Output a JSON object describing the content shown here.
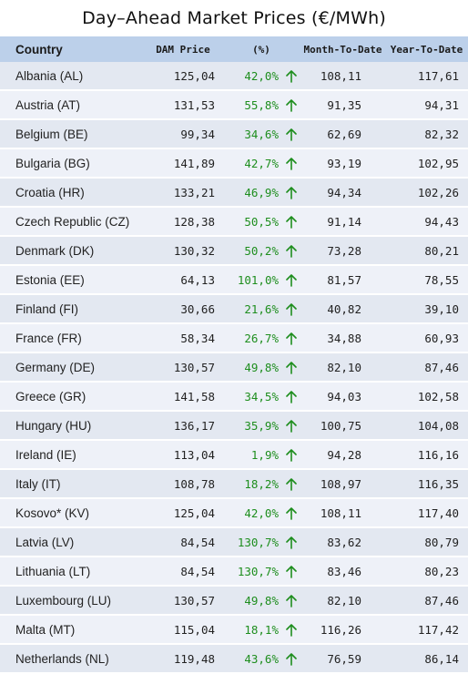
{
  "title": "Day–Ahead Market Prices (€/MWh)",
  "columns": {
    "country": "Country",
    "dam_price": "DAM Price",
    "pct": "(%)",
    "mtd": "Month-To-Date",
    "ytd": "Year-To-Date"
  },
  "colors": {
    "header_bg": "#bcd0ea",
    "up": "#1e8e1e"
  },
  "rows": [
    {
      "country": "Albania (AL)",
      "dam": "125,04",
      "pct": "42,0%",
      "trend": "up-arrow-icon",
      "mtd": "108,11",
      "ytd": "117,61"
    },
    {
      "country": "Austria (AT)",
      "dam": "131,53",
      "pct": "55,8%",
      "trend": "up-arrow-icon",
      "mtd": "91,35",
      "ytd": "94,31"
    },
    {
      "country": "Belgium (BE)",
      "dam": "99,34",
      "pct": "34,6%",
      "trend": "up-arrow-icon",
      "mtd": "62,69",
      "ytd": "82,32"
    },
    {
      "country": "Bulgaria (BG)",
      "dam": "141,89",
      "pct": "42,7%",
      "trend": "up-arrow-icon",
      "mtd": "93,19",
      "ytd": "102,95"
    },
    {
      "country": "Croatia (HR)",
      "dam": "133,21",
      "pct": "46,9%",
      "trend": "up-arrow-icon",
      "mtd": "94,34",
      "ytd": "102,26"
    },
    {
      "country": "Czech Republic (CZ)",
      "dam": "128,38",
      "pct": "50,5%",
      "trend": "up-arrow-icon",
      "mtd": "91,14",
      "ytd": "94,43"
    },
    {
      "country": "Denmark (DK)",
      "dam": "130,32",
      "pct": "50,2%",
      "trend": "up-arrow-icon",
      "mtd": "73,28",
      "ytd": "80,21"
    },
    {
      "country": "Estonia (EE)",
      "dam": "64,13",
      "pct": "101,0%",
      "trend": "up-arrow-icon",
      "mtd": "81,57",
      "ytd": "78,55"
    },
    {
      "country": "Finland (FI)",
      "dam": "30,66",
      "pct": "21,6%",
      "trend": "up-arrow-icon",
      "mtd": "40,82",
      "ytd": "39,10"
    },
    {
      "country": "France (FR)",
      "dam": "58,34",
      "pct": "26,7%",
      "trend": "up-arrow-icon",
      "mtd": "34,88",
      "ytd": "60,93"
    },
    {
      "country": "Germany (DE)",
      "dam": "130,57",
      "pct": "49,8%",
      "trend": "up-arrow-icon",
      "mtd": "82,10",
      "ytd": "87,46"
    },
    {
      "country": "Greece (GR)",
      "dam": "141,58",
      "pct": "34,5%",
      "trend": "up-arrow-icon",
      "mtd": "94,03",
      "ytd": "102,58"
    },
    {
      "country": "Hungary (HU)",
      "dam": "136,17",
      "pct": "35,9%",
      "trend": "up-arrow-icon",
      "mtd": "100,75",
      "ytd": "104,08"
    },
    {
      "country": "Ireland (IE)",
      "dam": "113,04",
      "pct": "1,9%",
      "trend": "up-arrow-icon",
      "mtd": "94,28",
      "ytd": "116,16"
    },
    {
      "country": "Italy (IT)",
      "dam": "108,78",
      "pct": "18,2%",
      "trend": "up-arrow-icon",
      "mtd": "108,97",
      "ytd": "116,35"
    },
    {
      "country": "Kosovo* (KV)",
      "dam": "125,04",
      "pct": "42,0%",
      "trend": "up-arrow-icon",
      "mtd": "108,11",
      "ytd": "117,40"
    },
    {
      "country": "Latvia (LV)",
      "dam": "84,54",
      "pct": "130,7%",
      "trend": "up-arrow-icon",
      "mtd": "83,62",
      "ytd": "80,79"
    },
    {
      "country": "Lithuania (LT)",
      "dam": "84,54",
      "pct": "130,7%",
      "trend": "up-arrow-icon",
      "mtd": "83,46",
      "ytd": "80,23"
    },
    {
      "country": "Luxembourg (LU)",
      "dam": "130,57",
      "pct": "49,8%",
      "trend": "up-arrow-icon",
      "mtd": "82,10",
      "ytd": "87,46"
    },
    {
      "country": "Malta (MT)",
      "dam": "115,04",
      "pct": "18,1%",
      "trend": "up-arrow-icon",
      "mtd": "116,26",
      "ytd": "117,42"
    },
    {
      "country": "Netherlands (NL)",
      "dam": "119,48",
      "pct": "43,6%",
      "trend": "up-arrow-icon",
      "mtd": "76,59",
      "ytd": "86,14"
    }
  ]
}
